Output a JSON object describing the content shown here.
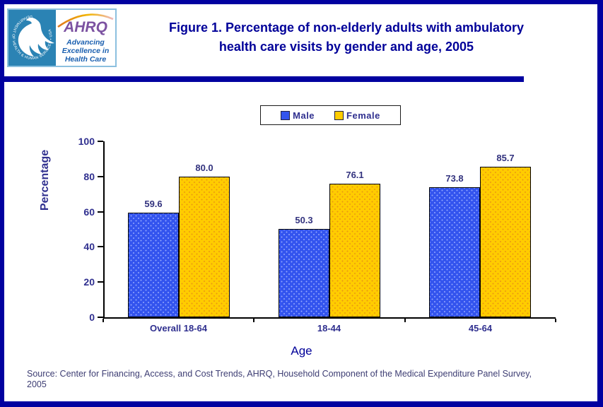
{
  "header": {
    "logo": {
      "ring_text": "DEPARTMENT OF HEALTH & HUMAN SERVICES • USA",
      "acronym": "AHRQ",
      "tagline": [
        "Advancing",
        "Excellence in",
        "Health Care"
      ]
    },
    "title_line1": "Figure 1. Percentage of non-elderly adults with ambulatory",
    "title_line2": "health care visits by gender and age, 2005"
  },
  "chart_data": {
    "type": "bar",
    "title": "Figure 1. Percentage of non-elderly adults with ambulatory health care visits by gender and age, 2005",
    "categories": [
      "Overall 18-64",
      "18-44",
      "45-64"
    ],
    "series": [
      {
        "name": "Male",
        "color": "#3354ee",
        "values": [
          59.6,
          50.3,
          73.8
        ]
      },
      {
        "name": "Female",
        "color": "#ffcc00",
        "values": [
          80.0,
          76.1,
          85.7
        ]
      }
    ],
    "xlabel": "Age",
    "ylabel": "Percentage",
    "ylim": [
      0,
      100
    ],
    "yticks": [
      0,
      20,
      40,
      60,
      80,
      100
    ],
    "grid": false,
    "legend_position": "top-center",
    "value_label_decimals": 1
  },
  "source_note": {
    "line1": "Source: Center for Financing, Access, and Cost Trends, AHRQ, Household Component of the Medical Expenditure Panel Survey,",
    "line2": "2005"
  }
}
